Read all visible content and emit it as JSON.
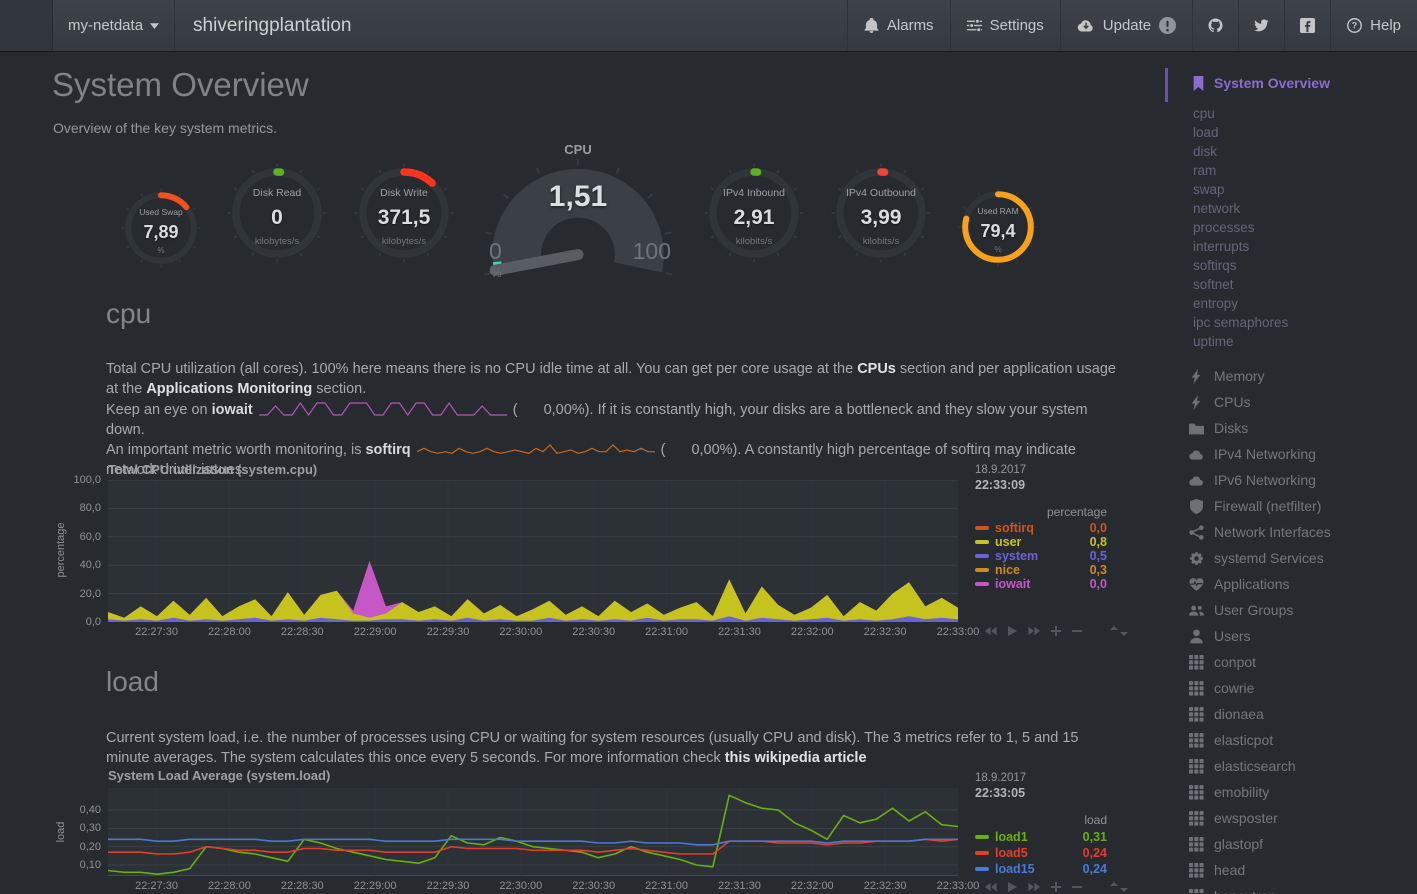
{
  "navbar": {
    "menu": "my-netdata",
    "host": "shiveringplantation",
    "alarms": "Alarms",
    "settings": "Settings",
    "update": "Update",
    "help": "Help"
  },
  "page": {
    "title": "System Overview",
    "subtitle": "Overview of the key system metrics."
  },
  "gauges": [
    {
      "title": "Used Swap",
      "value": "7,89",
      "units": "%",
      "arc_pct": 14,
      "color": "#f4501e"
    },
    {
      "title": "Disk Read",
      "value": "0",
      "units": "kilobytes/s",
      "arc_pct": 1.2,
      "color": "#5cb224"
    },
    {
      "title": "Disk Write",
      "value": "371,5",
      "units": "kilobytes/s",
      "arc_pct": 12,
      "color": "#fb351d"
    },
    {
      "title": "CPU",
      "value": "1,51",
      "units": "%",
      "min": "0",
      "max": "100",
      "arc_pct": 1.5,
      "color": "#36d7b7"
    },
    {
      "title": "IPv4 Inbound",
      "value": "2,91",
      "units": "kilobits/s",
      "arc_pct": 1.2,
      "color": "#5cb224"
    },
    {
      "title": "IPv4 Outbound",
      "value": "3,99",
      "units": "kilobits/s",
      "arc_pct": 1.2,
      "color": "#f44336"
    },
    {
      "title": "Used RAM",
      "value": "79,4",
      "units": "%",
      "arc_pct": 79,
      "color": "#f9a11b"
    }
  ],
  "sections": {
    "cpu": {
      "heading": "cpu",
      "p1": [
        "Total CPU utilization (all cores). 100% here means there is no CPU idle time at all. You can get per core usage at the ",
        "CPUs",
        " section and per application usage at the ",
        "Applications Monitoring",
        " section."
      ],
      "p2_pre": "Keep an eye on ",
      "p2_metric": "iowait",
      "p2_paren": "(",
      "p2_pct": "0,00%)",
      "p2_post": ". If it is constantly high, your disks are a bottleneck and they slow your system down.",
      "p3_pre": "An important metric worth monitoring, is ",
      "p3_metric": "softirq",
      "p3_paren": "(",
      "p3_pct": "0,00%)",
      "p3_post": ". A constantly high percentage of softirq may indicate network driver issues."
    },
    "load": {
      "heading": "load",
      "p1": "Current system load, i.e. the number of processes using CPU or waiting for system resources (usually CPU and disk). The 3 metrics refer to 1, 5 and 15 minute averages. The system calculates this once every 5 seconds. For more information check ",
      "link": "this wikipedia article"
    }
  },
  "chart_data": [
    {
      "id": "cpu",
      "type": "stacked-area",
      "title": "Total CPU utilization (system.cpu)",
      "units": "percentage",
      "date": "18.9.2017",
      "time": "22:33:09",
      "ymin": 0,
      "ymax": 100,
      "yticks": [
        {
          "v": 0,
          "label": "0,0"
        },
        {
          "v": 20,
          "label": "20,0"
        },
        {
          "v": 40,
          "label": "40,0"
        },
        {
          "v": 60,
          "label": "60,0"
        },
        {
          "v": 80,
          "label": "80,0"
        },
        {
          "v": 100,
          "label": "100,0"
        }
      ],
      "x_labels": [
        "22:27:30",
        "22:28:00",
        "22:28:30",
        "22:29:00",
        "22:29:30",
        "22:30:00",
        "22:30:30",
        "22:31:00",
        "22:31:30",
        "22:32:00",
        "22:32:30",
        "22:33:00"
      ],
      "series": [
        {
          "name": "system",
          "color": "#6a63d8",
          "values": [
            2,
            1,
            2,
            1,
            3,
            1,
            2,
            1,
            2,
            3,
            1,
            2,
            1,
            3,
            2,
            1,
            1,
            2,
            2,
            1,
            2,
            1,
            3,
            1,
            2,
            1,
            1,
            3,
            1,
            2,
            1,
            2,
            1,
            3,
            1,
            2,
            2,
            1,
            4,
            1,
            3,
            2,
            1,
            2,
            3,
            1,
            2,
            1,
            2,
            4,
            2,
            3,
            2
          ]
        },
        {
          "name": "user",
          "color": "#c6c31f",
          "values": [
            5,
            2,
            9,
            3,
            12,
            4,
            15,
            3,
            9,
            13,
            3,
            19,
            4,
            16,
            20,
            5,
            2,
            4,
            12,
            6,
            9,
            3,
            13,
            5,
            10,
            3,
            8,
            12,
            4,
            9,
            3,
            13,
            6,
            10,
            4,
            8,
            12,
            3,
            26,
            5,
            22,
            10,
            4,
            8,
            16,
            3,
            12,
            7,
            18,
            24,
            9,
            14,
            8
          ]
        },
        {
          "name": "iowait",
          "color": "#c558c5",
          "values": [
            0,
            0,
            0,
            0,
            0,
            0,
            0,
            0,
            0,
            0,
            0,
            0,
            0,
            0,
            0,
            2,
            40,
            5,
            0,
            0,
            0,
            0,
            0,
            0,
            0,
            0,
            0,
            0,
            0,
            0,
            0,
            0,
            0,
            0,
            0,
            0,
            0,
            0,
            0,
            0,
            0,
            0,
            0,
            0,
            0,
            0,
            0,
            0,
            0,
            0,
            0,
            0,
            0
          ]
        }
      ],
      "legend": [
        {
          "name": "softirq",
          "value": "0,0",
          "color": "#cf5418"
        },
        {
          "name": "user",
          "value": "0,8",
          "color": "#c6c31f"
        },
        {
          "name": "system",
          "value": "0,5",
          "color": "#6a63d8"
        },
        {
          "name": "nice",
          "value": "0,3",
          "color": "#cc8a1f"
        },
        {
          "name": "iowait",
          "value": "0,0",
          "color": "#c558c5"
        }
      ]
    },
    {
      "id": "load",
      "type": "line",
      "title": "System Load Average (system.load)",
      "units": "load",
      "date": "18.9.2017",
      "time": "22:33:05",
      "ymin": 0.04,
      "ymax": 0.52,
      "yticks": [
        {
          "v": 0.1,
          "label": "0,10"
        },
        {
          "v": 0.2,
          "label": "0,20"
        },
        {
          "v": 0.3,
          "label": "0,30"
        },
        {
          "v": 0.4,
          "label": "0,40"
        }
      ],
      "x_labels": [
        "22:27:30",
        "22:28:00",
        "22:28:30",
        "22:29:00",
        "22:29:30",
        "22:30:00",
        "22:30:30",
        "22:31:00",
        "22:31:30",
        "22:32:00",
        "22:32:30",
        "22:33:00"
      ],
      "series": [
        {
          "name": "load1",
          "color": "#68b011",
          "values": [
            0.07,
            0.06,
            0.06,
            0.05,
            0.06,
            0.08,
            0.2,
            0.19,
            0.17,
            0.16,
            0.14,
            0.12,
            0.24,
            0.22,
            0.19,
            0.17,
            0.15,
            0.13,
            0.12,
            0.11,
            0.14,
            0.26,
            0.22,
            0.21,
            0.25,
            0.23,
            0.2,
            0.19,
            0.18,
            0.17,
            0.14,
            0.16,
            0.2,
            0.17,
            0.15,
            0.13,
            0.1,
            0.09,
            0.48,
            0.44,
            0.41,
            0.4,
            0.33,
            0.29,
            0.24,
            0.37,
            0.33,
            0.35,
            0.41,
            0.34,
            0.39,
            0.32,
            0.31
          ]
        },
        {
          "name": "load5",
          "color": "#e43d2b",
          "values": [
            0.17,
            0.17,
            0.17,
            0.16,
            0.16,
            0.17,
            0.2,
            0.19,
            0.18,
            0.18,
            0.17,
            0.17,
            0.19,
            0.19,
            0.18,
            0.18,
            0.18,
            0.17,
            0.17,
            0.17,
            0.17,
            0.2,
            0.19,
            0.19,
            0.19,
            0.19,
            0.18,
            0.18,
            0.18,
            0.18,
            0.17,
            0.18,
            0.19,
            0.18,
            0.17,
            0.16,
            0.16,
            0.16,
            0.23,
            0.23,
            0.23,
            0.22,
            0.22,
            0.22,
            0.21,
            0.22,
            0.22,
            0.23,
            0.23,
            0.23,
            0.24,
            0.23,
            0.24
          ]
        },
        {
          "name": "load15",
          "color": "#4b79d3",
          "values": [
            0.24,
            0.24,
            0.24,
            0.23,
            0.23,
            0.24,
            0.24,
            0.24,
            0.24,
            0.24,
            0.23,
            0.23,
            0.24,
            0.24,
            0.24,
            0.24,
            0.24,
            0.23,
            0.23,
            0.23,
            0.23,
            0.24,
            0.24,
            0.24,
            0.24,
            0.23,
            0.23,
            0.23,
            0.23,
            0.23,
            0.22,
            0.22,
            0.23,
            0.22,
            0.22,
            0.22,
            0.21,
            0.21,
            0.23,
            0.23,
            0.23,
            0.23,
            0.23,
            0.23,
            0.22,
            0.23,
            0.23,
            0.23,
            0.23,
            0.23,
            0.24,
            0.24,
            0.24
          ]
        }
      ],
      "legend": [
        {
          "name": "load1",
          "value": "0,31",
          "color": "#68b011"
        },
        {
          "name": "load5",
          "value": "0,24",
          "color": "#e43d2b"
        },
        {
          "name": "load15",
          "value": "0,24",
          "color": "#4b79d3"
        }
      ]
    },
    {
      "id": "iowait-sparkline",
      "type": "sparkline",
      "color": "#b553bb",
      "values": [
        0,
        0,
        3,
        0,
        0,
        4,
        0,
        4,
        4,
        0,
        0,
        4,
        4,
        4,
        0,
        0,
        4,
        4,
        0,
        4,
        4,
        0,
        0,
        4,
        0,
        0,
        0,
        3,
        0,
        0,
        0
      ]
    },
    {
      "id": "softirq-sparkline",
      "type": "sparkline",
      "color": "#c8681f",
      "values": [
        1,
        2,
        1,
        0.5,
        1,
        0.5,
        2,
        1,
        0.5,
        1,
        2,
        1,
        0.5,
        1,
        1.5,
        1,
        0.5,
        2,
        1,
        3,
        0.5,
        1,
        1.5,
        0.5,
        1,
        2,
        1,
        1,
        3,
        1,
        1.5,
        1,
        2,
        1,
        1
      ]
    }
  ],
  "sidebar": {
    "active": {
      "label": "System Overview"
    },
    "sub": [
      {
        "label": "cpu"
      },
      {
        "label": "load"
      },
      {
        "label": "disk"
      },
      {
        "label": "ram"
      },
      {
        "label": "swap"
      },
      {
        "label": "network"
      },
      {
        "label": "processes"
      },
      {
        "label": "interrupts"
      },
      {
        "label": "softirqs"
      },
      {
        "label": "softnet"
      },
      {
        "label": "entropy"
      },
      {
        "label": "ipc semaphores"
      },
      {
        "label": "uptime"
      }
    ],
    "sections": [
      {
        "icon": "bolt",
        "label": "Memory"
      },
      {
        "icon": "bolt",
        "label": "CPUs"
      },
      {
        "icon": "folder",
        "label": "Disks"
      },
      {
        "icon": "cloud",
        "label": "IPv4 Networking"
      },
      {
        "icon": "cloud",
        "label": "IPv6 Networking"
      },
      {
        "icon": "shield",
        "label": "Firewall (netfilter)"
      },
      {
        "icon": "share",
        "label": "Network Interfaces"
      },
      {
        "icon": "cogs",
        "label": "systemd Services"
      },
      {
        "icon": "heartbeat",
        "label": "Applications"
      },
      {
        "icon": "users",
        "label": "User Groups"
      },
      {
        "icon": "user",
        "label": "Users"
      },
      {
        "icon": "grid",
        "label": "conpot"
      },
      {
        "icon": "grid",
        "label": "cowrie"
      },
      {
        "icon": "grid",
        "label": "dionaea"
      },
      {
        "icon": "grid",
        "label": "elasticpot"
      },
      {
        "icon": "grid",
        "label": "elasticsearch"
      },
      {
        "icon": "grid",
        "label": "emobility"
      },
      {
        "icon": "grid",
        "label": "ewsposter"
      },
      {
        "icon": "grid",
        "label": "glastopf"
      },
      {
        "icon": "grid",
        "label": "head"
      },
      {
        "icon": "grid",
        "label": "honeytrap"
      }
    ]
  }
}
